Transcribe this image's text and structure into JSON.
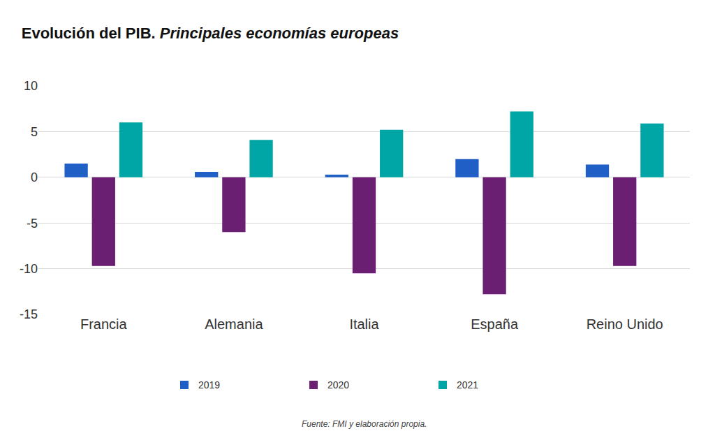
{
  "chart_data": {
    "type": "bar",
    "title": "Evolución del PIB.",
    "subtitle": "Principales economías europeas",
    "annotation": "Fuente: FMI y elaboración propia.",
    "categories": [
      "Francia",
      "Alemania",
      "Italia",
      "España",
      "Reino Unido"
    ],
    "series": [
      {
        "name": "2019",
        "color": "#1f5fc6",
        "values": [
          1.5,
          0.6,
          0.3,
          2.0,
          1.4
        ]
      },
      {
        "name": "2020",
        "color": "#6b1f73",
        "values": [
          -9.7,
          -6.0,
          -10.5,
          -12.8,
          -9.7
        ]
      },
      {
        "name": "2021",
        "color": "#00a6a6",
        "values": [
          6.0,
          4.1,
          5.2,
          7.2,
          5.9
        ]
      }
    ],
    "ylim": [
      -15,
      10
    ],
    "yticks": [
      -15,
      -10,
      -5,
      0,
      5,
      10
    ],
    "grid": true,
    "legend": "bottom"
  }
}
